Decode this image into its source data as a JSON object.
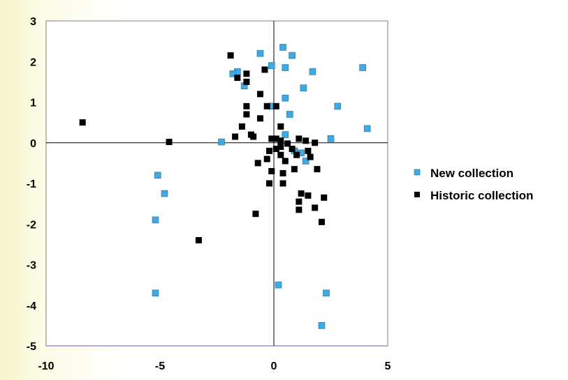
{
  "chart_data": {
    "type": "scatter",
    "title": "",
    "xlabel": "",
    "ylabel": "",
    "xlim": [
      -10,
      5
    ],
    "ylim": [
      -5,
      3
    ],
    "xticks": [
      -10,
      -5,
      0,
      5
    ],
    "yticks": [
      3,
      2,
      1,
      0,
      -1,
      -2,
      -3,
      -4,
      -5
    ],
    "grid": false,
    "legend_position": "right",
    "series": [
      {
        "name": "New collection",
        "color": "#3fa9e0",
        "points": [
          [
            0.4,
            2.35
          ],
          [
            0.8,
            2.15
          ],
          [
            -0.6,
            2.2
          ],
          [
            -0.1,
            1.9
          ],
          [
            0.5,
            1.85
          ],
          [
            -1.6,
            1.75
          ],
          [
            -1.8,
            1.7
          ],
          [
            -1.3,
            1.4
          ],
          [
            1.7,
            1.75
          ],
          [
            3.9,
            1.85
          ],
          [
            1.3,
            1.35
          ],
          [
            0.5,
            1.1
          ],
          [
            -0.1,
            0.9
          ],
          [
            2.8,
            0.9
          ],
          [
            0.7,
            0.7
          ],
          [
            4.1,
            0.35
          ],
          [
            0.5,
            0.2
          ],
          [
            2.5,
            0.1
          ],
          [
            -2.3,
            0.02
          ],
          [
            0.9,
            -0.2
          ],
          [
            1.05,
            -0.25
          ],
          [
            1.2,
            -0.25
          ],
          [
            1.4,
            -0.45
          ],
          [
            -5.1,
            -0.8
          ],
          [
            -4.8,
            -1.25
          ],
          [
            -5.2,
            -1.9
          ],
          [
            -5.2,
            -3.7
          ],
          [
            0.2,
            -3.5
          ],
          [
            2.3,
            -3.7
          ],
          [
            2.1,
            -4.5
          ]
        ]
      },
      {
        "name": "Historic collection",
        "color": "#000000",
        "points": [
          [
            -8.4,
            0.5
          ],
          [
            -4.6,
            0.02
          ],
          [
            -3.3,
            -2.4
          ],
          [
            -1.9,
            2.15
          ],
          [
            -0.4,
            1.8
          ],
          [
            -1.2,
            1.7
          ],
          [
            -1.6,
            1.6
          ],
          [
            -1.2,
            1.5
          ],
          [
            -0.6,
            1.2
          ],
          [
            -1.2,
            0.9
          ],
          [
            -0.3,
            0.9
          ],
          [
            0.1,
            0.9
          ],
          [
            -1.2,
            0.7
          ],
          [
            -0.6,
            0.6
          ],
          [
            -1.4,
            0.4
          ],
          [
            0.3,
            0.4
          ],
          [
            -1.7,
            0.15
          ],
          [
            -0.9,
            0.15
          ],
          [
            -0.1,
            0.1
          ],
          [
            0.1,
            0.1
          ],
          [
            0.3,
            0.05
          ],
          [
            -1.0,
            0.2
          ],
          [
            0.6,
            -0.02
          ],
          [
            0.3,
            -0.1
          ],
          [
            0.1,
            -0.15
          ],
          [
            -0.2,
            -0.2
          ],
          [
            0.8,
            -0.15
          ],
          [
            1.1,
            0.1
          ],
          [
            1.4,
            0.05
          ],
          [
            1.8,
            0.0
          ],
          [
            1.5,
            -0.2
          ],
          [
            1.6,
            -0.35
          ],
          [
            0.3,
            -0.3
          ],
          [
            1.0,
            -0.3
          ],
          [
            -0.7,
            -0.5
          ],
          [
            -0.3,
            -0.4
          ],
          [
            0.5,
            -0.45
          ],
          [
            0.9,
            -0.65
          ],
          [
            1.9,
            -0.65
          ],
          [
            -0.1,
            -0.7
          ],
          [
            0.4,
            -0.75
          ],
          [
            -0.2,
            -1.0
          ],
          [
            0.4,
            -1.0
          ],
          [
            1.2,
            -1.25
          ],
          [
            1.5,
            -1.3
          ],
          [
            2.2,
            -1.35
          ],
          [
            1.1,
            -1.45
          ],
          [
            1.1,
            -1.65
          ],
          [
            1.8,
            -1.6
          ],
          [
            -0.8,
            -1.75
          ],
          [
            2.1,
            -1.95
          ]
        ]
      }
    ]
  }
}
